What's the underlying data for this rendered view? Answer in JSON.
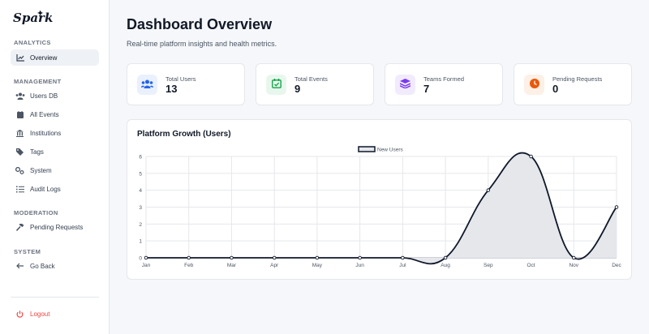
{
  "sidebar": {
    "logo": "Spark",
    "sections": {
      "analytics": "ANALYTICS",
      "management": "MANAGEMENT",
      "moderation": "MODERATION",
      "system": "SYSTEM"
    },
    "items": {
      "overview": "Overview",
      "users_db": "Users DB",
      "all_events": "All Events",
      "institutions": "Institutions",
      "tags": "Tags",
      "system": "System",
      "audit_logs": "Audit Logs",
      "pending_requests": "Pending Requests",
      "go_back": "Go Back",
      "logout": "Logout"
    }
  },
  "header": {
    "title": "Dashboard Overview",
    "subtitle": "Real-time platform insights and health metrics."
  },
  "stats": [
    {
      "label": "Total Users",
      "value": "13",
      "icon": "users-icon",
      "color": "#2563eb",
      "bg": "#eaf1fd"
    },
    {
      "label": "Total Events",
      "value": "9",
      "icon": "calendar-check-icon",
      "color": "#16a34a",
      "bg": "#e8f7ee"
    },
    {
      "label": "Teams Formed",
      "value": "7",
      "icon": "layers-icon",
      "color": "#7c3aed",
      "bg": "#f1ebfd"
    },
    {
      "label": "Pending Requests",
      "value": "0",
      "icon": "clock-icon",
      "color": "#ea580c",
      "bg": "#fdf0e7"
    }
  ],
  "chart": {
    "title": "Platform Growth (Users)"
  },
  "chart_data": {
    "type": "area",
    "x": [
      "Jan",
      "Feb",
      "Mar",
      "Apr",
      "May",
      "Jun",
      "Jul",
      "Aug",
      "Sep",
      "Oct",
      "Nov",
      "Dec"
    ],
    "series": [
      {
        "name": "New Users",
        "values": [
          0,
          0,
          0,
          0,
          0,
          0,
          0,
          0,
          4,
          6,
          0,
          3
        ]
      }
    ],
    "yticks": [
      "0",
      "1",
      "2",
      "3",
      "4",
      "5",
      "6"
    ],
    "ylim": [
      0,
      6
    ],
    "grid": true,
    "legend": "top-center",
    "line_color": "#0f172a",
    "fill_color": "#e5e7eb"
  }
}
